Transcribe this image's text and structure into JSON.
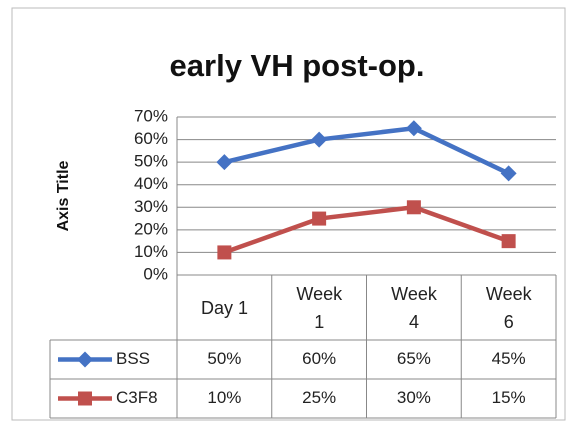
{
  "chart_data": {
    "type": "line",
    "title": "early VH post-op.",
    "y_axis_label": "Axis Title",
    "categories": [
      "Day 1",
      "Week 1",
      "Week 4",
      "Week 6"
    ],
    "series": [
      {
        "name": "BSS",
        "color": "#4472c4",
        "marker": "diamond",
        "values": [
          50,
          60,
          65,
          45
        ],
        "value_labels": [
          "50%",
          "60%",
          "65%",
          "45%"
        ]
      },
      {
        "name": "C3F8",
        "color": "#c0504d",
        "marker": "square",
        "values": [
          10,
          25,
          30,
          15
        ],
        "value_labels": [
          "10%",
          "25%",
          "30%",
          "15%"
        ]
      }
    ],
    "ylim": [
      0,
      70
    ],
    "yticks": [
      {
        "value": 0,
        "label": "0%"
      },
      {
        "value": 10,
        "label": "10%"
      },
      {
        "value": 20,
        "label": "20%"
      },
      {
        "value": 30,
        "label": "30%"
      },
      {
        "value": 40,
        "label": "40%"
      },
      {
        "value": 50,
        "label": "50%"
      },
      {
        "value": 60,
        "label": "60%"
      },
      {
        "value": 70,
        "label": "70%"
      }
    ],
    "grid": true
  }
}
